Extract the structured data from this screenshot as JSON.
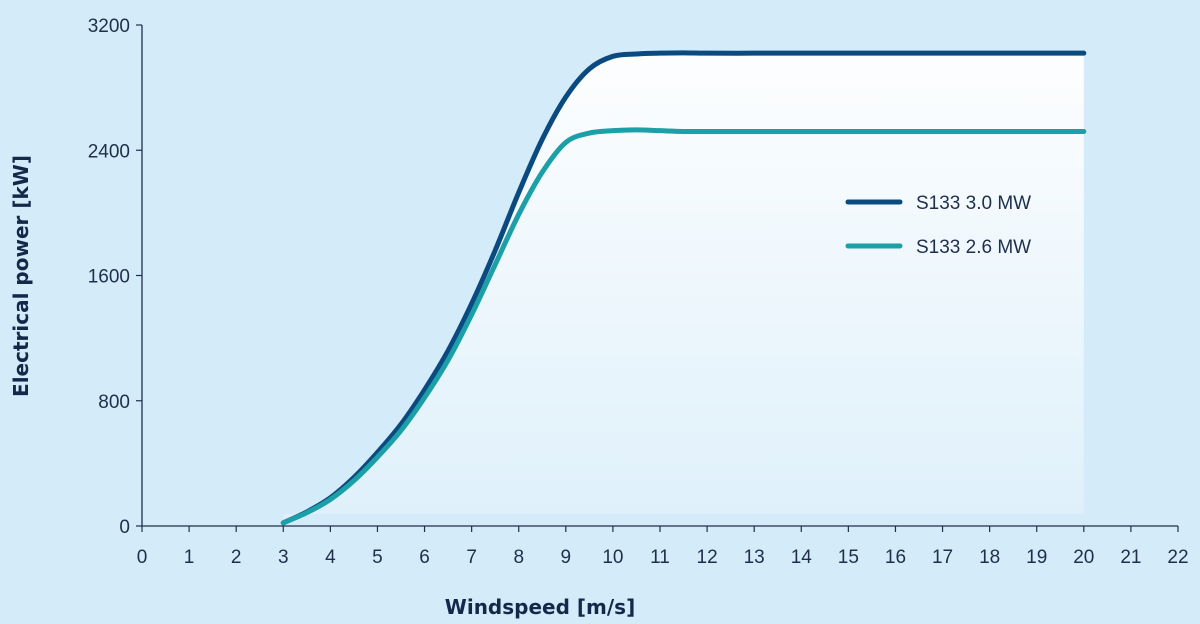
{
  "chart_data": {
    "type": "line",
    "title": "",
    "xlabel": "Windspeed [m/s]",
    "ylabel": "Electrical power [kW]",
    "xlim": [
      0,
      22
    ],
    "ylim": [
      0,
      3200
    ],
    "xticks": [
      0,
      1,
      2,
      3,
      4,
      5,
      6,
      7,
      8,
      9,
      10,
      11,
      12,
      13,
      14,
      15,
      16,
      17,
      18,
      19,
      20,
      21,
      22
    ],
    "yticks": [
      0,
      800,
      1600,
      2400,
      3200
    ],
    "grid": false,
    "legend_position": "right",
    "series": [
      {
        "name": "S133 3.0 MW",
        "color": "#0b4a80",
        "x": [
          3,
          3.5,
          4,
          4.5,
          5,
          5.5,
          6,
          6.5,
          7,
          7.5,
          8,
          8.5,
          9,
          9.5,
          10,
          10.5,
          11,
          11.5,
          12,
          13,
          14,
          15,
          16,
          17,
          18,
          19,
          20
        ],
        "y": [
          20,
          90,
          180,
          310,
          470,
          650,
          870,
          1120,
          1420,
          1760,
          2130,
          2470,
          2740,
          2920,
          3000,
          3015,
          3020,
          3022,
          3020,
          3020,
          3020,
          3020,
          3020,
          3020,
          3020,
          3020,
          3020
        ]
      },
      {
        "name": "S133 2.6 MW",
        "color": "#1aa0a6",
        "x": [
          3,
          3.5,
          4,
          4.5,
          5,
          5.5,
          6,
          6.5,
          7,
          7.5,
          8,
          8.5,
          9,
          9.5,
          10,
          10.5,
          11,
          11.5,
          12,
          13,
          14,
          15,
          16,
          17,
          18,
          19,
          20
        ],
        "y": [
          20,
          85,
          170,
          290,
          440,
          610,
          820,
          1060,
          1350,
          1670,
          1990,
          2260,
          2450,
          2510,
          2525,
          2530,
          2525,
          2520,
          2520,
          2520,
          2520,
          2520,
          2520,
          2520,
          2520,
          2520,
          2520
        ]
      }
    ]
  }
}
